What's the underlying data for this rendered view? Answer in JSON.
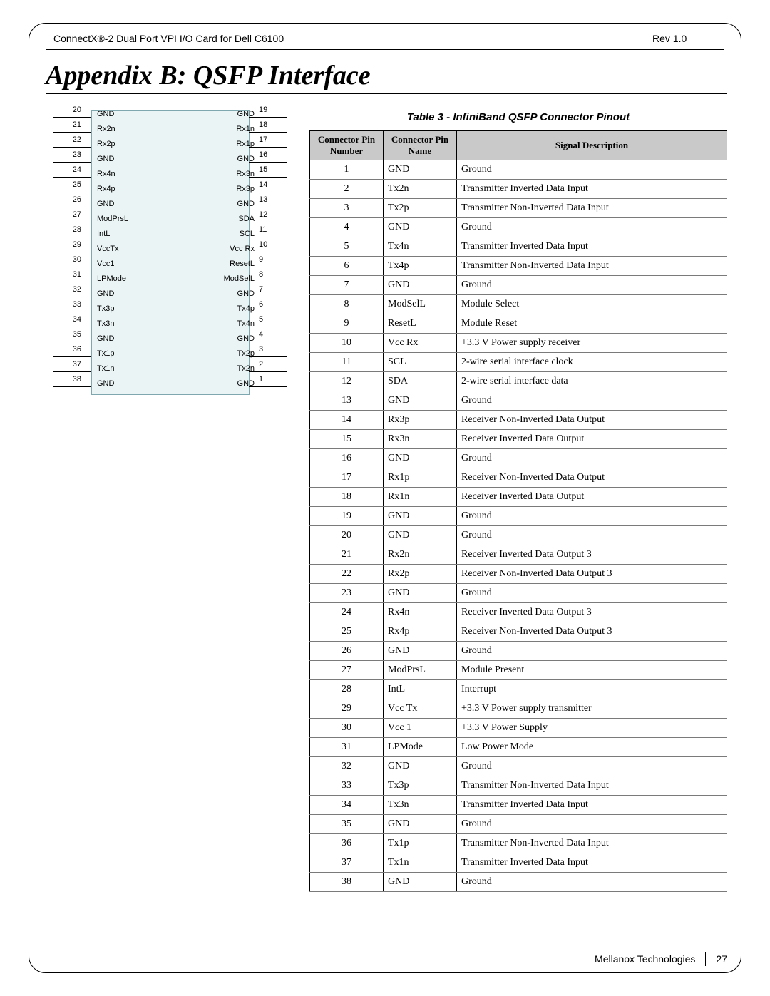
{
  "header": {
    "left": "ConnectX®-2 Dual Port VPI I/O Card for Dell C6100",
    "right": "Rev 1.0"
  },
  "title": "Appendix B: QSFP Interface",
  "diagram": {
    "background": "#eaf4f5",
    "border": "#7fa7af",
    "left_pins": [
      {
        "n": "20",
        "lbl": "GND"
      },
      {
        "n": "21",
        "lbl": "Rx2n"
      },
      {
        "n": "22",
        "lbl": "Rx2p"
      },
      {
        "n": "23",
        "lbl": "GND"
      },
      {
        "n": "24",
        "lbl": "Rx4n"
      },
      {
        "n": "25",
        "lbl": "Rx4p"
      },
      {
        "n": "26",
        "lbl": "GND"
      },
      {
        "n": "27",
        "lbl": "ModPrsL"
      },
      {
        "n": "28",
        "lbl": "IntL"
      },
      {
        "n": "29",
        "lbl": "VccTx"
      },
      {
        "n": "30",
        "lbl": "Vcc1"
      },
      {
        "n": "31",
        "lbl": "LPMode"
      },
      {
        "n": "32",
        "lbl": "GND"
      },
      {
        "n": "33",
        "lbl": "Tx3p"
      },
      {
        "n": "34",
        "lbl": "Tx3n"
      },
      {
        "n": "35",
        "lbl": "GND"
      },
      {
        "n": "36",
        "lbl": "Tx1p"
      },
      {
        "n": "37",
        "lbl": "Tx1n"
      },
      {
        "n": "38",
        "lbl": "GND"
      }
    ],
    "right_pins": [
      {
        "n": "19",
        "lbl": "GND"
      },
      {
        "n": "18",
        "lbl": "Rx1n"
      },
      {
        "n": "17",
        "lbl": "Rx1p"
      },
      {
        "n": "16",
        "lbl": "GND"
      },
      {
        "n": "15",
        "lbl": "Rx3n"
      },
      {
        "n": "14",
        "lbl": "Rx3p"
      },
      {
        "n": "13",
        "lbl": "GND"
      },
      {
        "n": "12",
        "lbl": "SDA"
      },
      {
        "n": "11",
        "lbl": "SCL"
      },
      {
        "n": "10",
        "lbl": "Vcc Rx"
      },
      {
        "n": "9",
        "lbl": "ResetL"
      },
      {
        "n": "8",
        "lbl": "ModSelL"
      },
      {
        "n": "7",
        "lbl": "GND"
      },
      {
        "n": "6",
        "lbl": "Tx4p"
      },
      {
        "n": "5",
        "lbl": "Tx4n"
      },
      {
        "n": "4",
        "lbl": "GND"
      },
      {
        "n": "3",
        "lbl": "Tx2p"
      },
      {
        "n": "2",
        "lbl": "Tx2n"
      },
      {
        "n": "1",
        "lbl": "GND"
      }
    ]
  },
  "table": {
    "caption": "Table 3 - InfiniBand QSFP Connector Pinout",
    "headers": [
      "Connector Pin Number",
      "Connector Pin Name",
      "Signal Description"
    ],
    "rows": [
      [
        "1",
        "GND",
        "Ground"
      ],
      [
        "2",
        "Tx2n",
        "Transmitter Inverted Data Input"
      ],
      [
        "3",
        "Tx2p",
        "Transmitter Non-Inverted Data Input"
      ],
      [
        "4",
        "GND",
        "Ground"
      ],
      [
        "5",
        "Tx4n",
        "Transmitter Inverted Data Input"
      ],
      [
        "6",
        "Tx4p",
        "Transmitter Non-Inverted Data Input"
      ],
      [
        "7",
        "GND",
        "Ground"
      ],
      [
        "8",
        "ModSelL",
        "Module Select"
      ],
      [
        "9",
        "ResetL",
        "Module Reset"
      ],
      [
        "10",
        "Vcc Rx",
        "+3.3 V Power supply receiver"
      ],
      [
        "11",
        "SCL",
        "2-wire serial interface clock"
      ],
      [
        "12",
        "SDA",
        "2-wire serial interface data"
      ],
      [
        "13",
        "GND",
        "Ground"
      ],
      [
        "14",
        "Rx3p",
        "Receiver Non-Inverted Data Output"
      ],
      [
        "15",
        "Rx3n",
        "Receiver Inverted Data Output"
      ],
      [
        "16",
        "GND",
        "Ground"
      ],
      [
        "17",
        "Rx1p",
        "Receiver Non-Inverted Data Output"
      ],
      [
        "18",
        "Rx1n",
        "Receiver Inverted Data Output"
      ],
      [
        "19",
        "GND",
        "Ground"
      ],
      [
        "20",
        "GND",
        "Ground"
      ],
      [
        "21",
        "Rx2n",
        "Receiver Inverted Data Output 3"
      ],
      [
        "22",
        "Rx2p",
        "Receiver Non-Inverted Data Output 3"
      ],
      [
        "23",
        "GND",
        "Ground"
      ],
      [
        "24",
        "Rx4n",
        "Receiver Inverted Data Output 3"
      ],
      [
        "25",
        "Rx4p",
        "Receiver Non-Inverted Data Output 3"
      ],
      [
        "26",
        "GND",
        "Ground"
      ],
      [
        "27",
        "ModPrsL",
        "Module Present"
      ],
      [
        "28",
        "IntL",
        "Interrupt"
      ],
      [
        "29",
        "Vcc Tx",
        "+3.3 V Power supply transmitter"
      ],
      [
        "30",
        "Vcc 1",
        "+3.3 V Power Supply"
      ],
      [
        "31",
        "LPMode",
        " Low Power Mode"
      ],
      [
        "32",
        "GND",
        "Ground"
      ],
      [
        "33",
        "Tx3p",
        "Transmitter Non-Inverted Data Input"
      ],
      [
        "34",
        "Tx3n",
        "Transmitter Inverted Data Input"
      ],
      [
        "35",
        "GND",
        "Ground"
      ],
      [
        "36",
        "Tx1p",
        "Transmitter Non-Inverted Data Input"
      ],
      [
        "37",
        "Tx1n",
        "Transmitter Inverted Data Input"
      ],
      [
        "38",
        "GND",
        "Ground"
      ]
    ]
  },
  "footer": {
    "company": "Mellanox Technologies",
    "page": "27"
  }
}
